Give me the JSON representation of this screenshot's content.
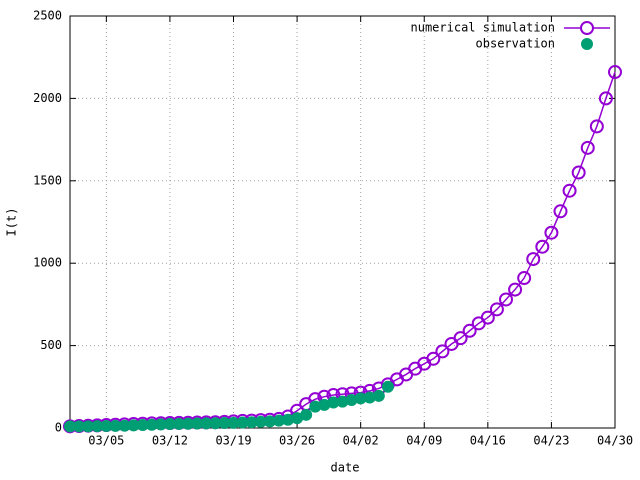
{
  "chart_data": {
    "type": "line",
    "xlabel": "date",
    "ylabel": "I(t)",
    "xlim": [
      "03/01",
      "04/30"
    ],
    "xticks": [
      "03/05",
      "03/12",
      "03/19",
      "03/26",
      "04/02",
      "04/09",
      "04/16",
      "04/23",
      "04/30"
    ],
    "ylim": [
      0,
      2500
    ],
    "yticks": [
      0,
      500,
      1000,
      1500,
      2000,
      2500
    ],
    "grid": true,
    "legend": "top-right",
    "series": [
      {
        "name": "numerical simulation",
        "color": "#9400d3",
        "style": "line-open-circle",
        "x": [
          "03/01",
          "03/02",
          "03/03",
          "03/04",
          "03/05",
          "03/06",
          "03/07",
          "03/08",
          "03/09",
          "03/10",
          "03/11",
          "03/12",
          "03/13",
          "03/14",
          "03/15",
          "03/16",
          "03/17",
          "03/18",
          "03/19",
          "03/20",
          "03/21",
          "03/22",
          "03/23",
          "03/24",
          "03/25",
          "03/26",
          "03/27",
          "03/28",
          "03/29",
          "03/30",
          "03/31",
          "04/01",
          "04/02",
          "04/03",
          "04/04",
          "04/05",
          "04/06",
          "04/07",
          "04/08",
          "04/09",
          "04/10",
          "04/11",
          "04/12",
          "04/13",
          "04/14",
          "04/15",
          "04/16",
          "04/17",
          "04/18",
          "04/19",
          "04/20",
          "04/21",
          "04/22",
          "04/23",
          "04/24",
          "04/25",
          "04/26",
          "04/27",
          "04/28",
          "04/29",
          "04/30"
        ],
        "values": [
          10,
          12,
          14,
          16,
          18,
          20,
          22,
          24,
          26,
          28,
          29,
          30,
          31,
          32,
          33,
          34,
          35,
          37,
          40,
          43,
          45,
          48,
          50,
          55,
          70,
          105,
          145,
          175,
          190,
          200,
          205,
          210,
          215,
          225,
          240,
          265,
          295,
          325,
          360,
          390,
          420,
          465,
          510,
          545,
          590,
          635,
          670,
          720,
          780,
          840,
          910,
          1025,
          1100,
          1185,
          1315,
          1440,
          1550,
          1700,
          1830,
          2000,
          2160
        ]
      },
      {
        "name": "observation",
        "color": "#009e73",
        "style": "filled-circle",
        "x": [
          "03/01",
          "03/02",
          "03/03",
          "03/04",
          "03/05",
          "03/06",
          "03/07",
          "03/08",
          "03/09",
          "03/10",
          "03/11",
          "03/12",
          "03/13",
          "03/14",
          "03/15",
          "03/16",
          "03/17",
          "03/18",
          "03/19",
          "03/20",
          "03/21",
          "03/22",
          "03/23",
          "03/24",
          "03/25",
          "03/26",
          "03/27",
          "03/28",
          "03/29",
          "03/30",
          "03/31",
          "04/01",
          "04/02",
          "04/03",
          "04/04",
          "04/05"
        ],
        "values": [
          10,
          10,
          10,
          11,
          12,
          13,
          14,
          16,
          18,
          20,
          22,
          24,
          25,
          26,
          27,
          28,
          29,
          30,
          31,
          33,
          35,
          38,
          40,
          45,
          50,
          60,
          80,
          130,
          140,
          155,
          160,
          170,
          180,
          185,
          195,
          250
        ]
      }
    ]
  }
}
